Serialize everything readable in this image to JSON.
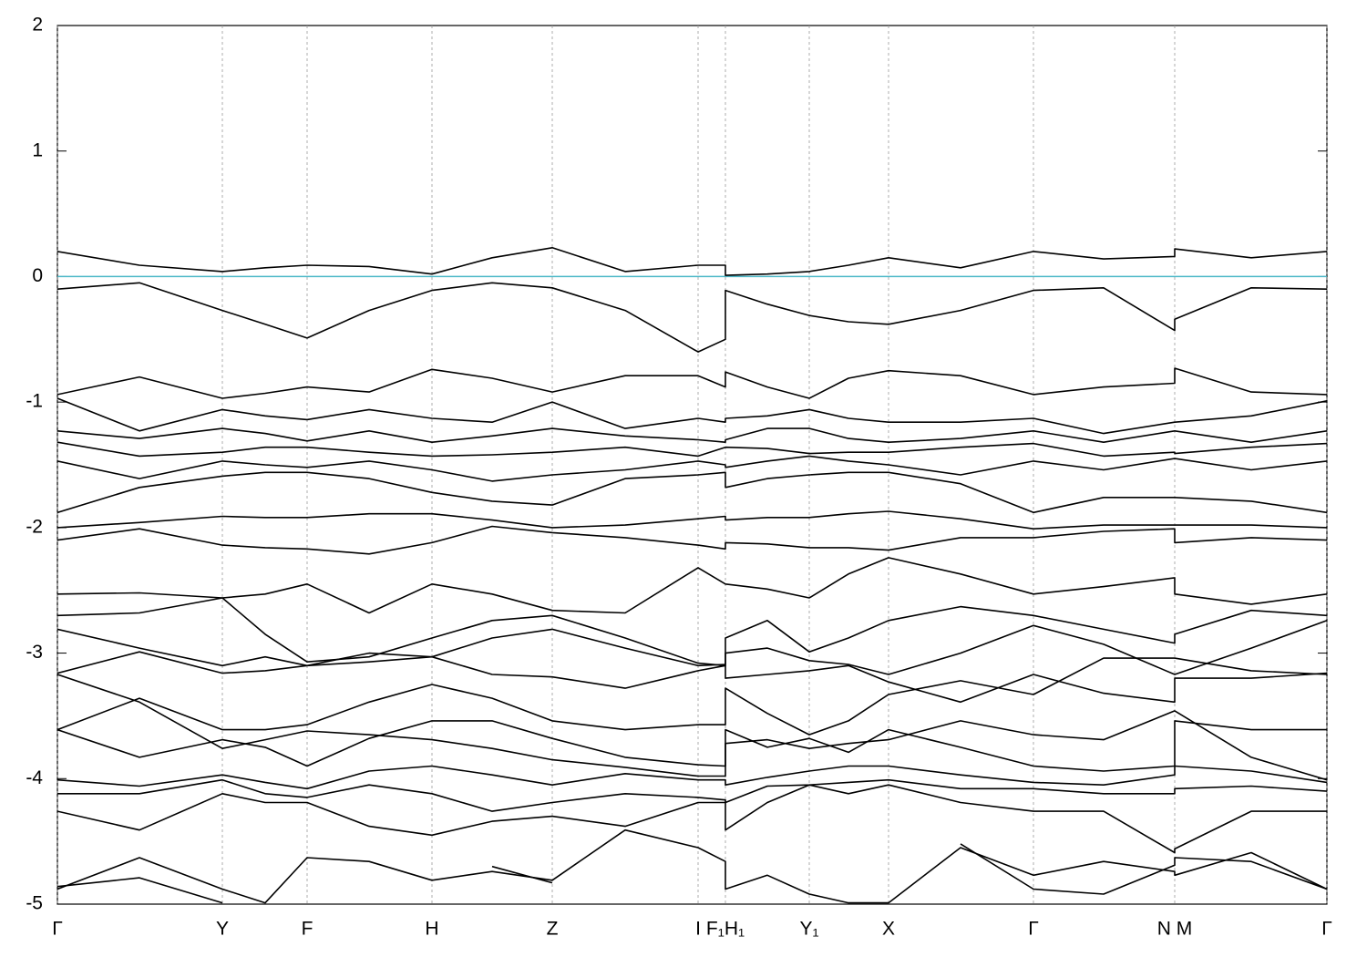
{
  "chart_data": {
    "type": "line",
    "x": [
      0,
      90,
      181,
      228,
      274,
      342,
      411,
      477,
      543,
      623,
      703,
      733,
      733,
      779,
      825,
      868,
      912,
      991,
      1071,
      1148,
      1226,
      1226,
      1310,
      1393
    ],
    "xlim": [
      0,
      1393
    ],
    "xticks": [
      {
        "value": 0,
        "label": "Γ"
      },
      {
        "value": 181,
        "label": "Y"
      },
      {
        "value": 274,
        "label": "F"
      },
      {
        "value": 411,
        "label": "H"
      },
      {
        "value": 543,
        "label": "Z"
      },
      {
        "value": 703,
        "label": "I"
      },
      {
        "value": 733,
        "label": "F₁H₁"
      },
      {
        "value": 825,
        "label": "Y₁"
      },
      {
        "value": 912,
        "label": "X"
      },
      {
        "value": 1071,
        "label": "Γ"
      },
      {
        "value": 1226,
        "label": "N M"
      },
      {
        "value": 1393,
        "label": "Γ"
      }
    ],
    "ylim": [
      -5,
      2
    ],
    "yticks": [
      2,
      1,
      0,
      -1,
      -2,
      -3,
      -4,
      -5
    ],
    "x_grid": true,
    "reference_line": {
      "value": 0,
      "color": "#4db8c8"
    },
    "series": [
      {
        "color": "#000000",
        "values": [
          0.2,
          0.09,
          0.04,
          0.07,
          0.09,
          0.08,
          0.02,
          0.15,
          0.23,
          0.04,
          0.09,
          0.09,
          0.01,
          0.02,
          0.04,
          0.09,
          0.15,
          0.07,
          0.2,
          0.14,
          0.16,
          0.22,
          0.15,
          0.2
        ]
      },
      {
        "color": "#000000",
        "values": [
          -0.1,
          -0.05,
          -0.27,
          -0.38,
          -0.49,
          -0.27,
          -0.11,
          -0.05,
          -0.09,
          -0.27,
          -0.6,
          -0.5,
          -0.11,
          -0.22,
          -0.31,
          -0.36,
          -0.38,
          -0.27,
          -0.11,
          -0.09,
          -0.43,
          -0.34,
          -0.09,
          -0.1
        ]
      },
      {
        "color": "#000000",
        "values": [
          -0.94,
          -0.8,
          -0.97,
          -0.93,
          -0.88,
          -0.92,
          -0.74,
          -0.81,
          -0.92,
          -0.79,
          -0.79,
          -0.88,
          -0.76,
          -0.88,
          -0.97,
          -0.81,
          -0.75,
          -0.79,
          -0.94,
          -0.88,
          -0.85,
          -0.73,
          -0.92,
          -0.94
        ]
      },
      {
        "color": "#000000",
        "values": [
          -0.97,
          -1.23,
          -1.06,
          -1.11,
          -1.14,
          -1.06,
          -1.13,
          -1.16,
          -1.0,
          -1.21,
          -1.13,
          -1.16,
          -1.13,
          -1.11,
          -1.06,
          -1.13,
          -1.16,
          -1.16,
          -1.13,
          -1.25,
          -1.16,
          -1.16,
          -1.11,
          -0.99
        ]
      },
      {
        "color": "#000000",
        "values": [
          -1.23,
          -1.29,
          -1.21,
          -1.25,
          -1.31,
          -1.23,
          -1.32,
          -1.27,
          -1.21,
          -1.27,
          -1.3,
          -1.32,
          -1.3,
          -1.21,
          -1.21,
          -1.29,
          -1.32,
          -1.29,
          -1.23,
          -1.32,
          -1.23,
          -1.23,
          -1.32,
          -1.23
        ]
      },
      {
        "color": "#000000",
        "values": [
          -1.32,
          -1.43,
          -1.4,
          -1.36,
          -1.36,
          -1.4,
          -1.43,
          -1.42,
          -1.4,
          -1.36,
          -1.43,
          -1.36,
          -1.36,
          -1.37,
          -1.41,
          -1.4,
          -1.4,
          -1.36,
          -1.33,
          -1.43,
          -1.4,
          -1.41,
          -1.36,
          -1.33
        ]
      },
      {
        "color": "#000000",
        "values": [
          -1.47,
          -1.61,
          -1.47,
          -1.5,
          -1.52,
          -1.47,
          -1.54,
          -1.63,
          -1.58,
          -1.54,
          -1.47,
          -1.5,
          -1.52,
          -1.47,
          -1.43,
          -1.47,
          -1.5,
          -1.58,
          -1.47,
          -1.54,
          -1.45,
          -1.45,
          -1.54,
          -1.47
        ]
      },
      {
        "color": "#000000",
        "values": [
          -1.88,
          -1.68,
          -1.59,
          -1.56,
          -1.56,
          -1.61,
          -1.72,
          -1.79,
          -1.82,
          -1.61,
          -1.58,
          -1.56,
          -1.68,
          -1.61,
          -1.58,
          -1.56,
          -1.56,
          -1.65,
          -1.88,
          -1.76,
          -1.76,
          -1.76,
          -1.79,
          -1.88
        ]
      },
      {
        "color": "#000000",
        "values": [
          -2.0,
          -1.96,
          -1.91,
          -1.92,
          -1.92,
          -1.89,
          -1.89,
          -1.94,
          -2.0,
          -1.98,
          -1.93,
          -1.91,
          -1.94,
          -1.92,
          -1.92,
          -1.89,
          -1.87,
          -1.93,
          -2.01,
          -1.98,
          -1.98,
          -1.98,
          -1.98,
          -2.0
        ]
      },
      {
        "color": "#000000",
        "values": [
          -2.1,
          -2.01,
          -2.14,
          -2.16,
          -2.17,
          -2.21,
          -2.12,
          -1.99,
          -2.04,
          -2.08,
          -2.14,
          -2.17,
          -2.12,
          -2.13,
          -2.16,
          -2.16,
          -2.18,
          -2.08,
          -2.08,
          -2.03,
          -2.01,
          -2.12,
          -2.08,
          -2.1
        ]
      },
      {
        "color": "#000000",
        "values": [
          -2.53,
          -2.52,
          -2.56,
          -2.53,
          -2.45,
          -2.68,
          -2.45,
          -2.53,
          -2.66,
          -2.68,
          -2.32,
          -2.45,
          -2.45,
          -2.49,
          -2.56,
          -2.37,
          -2.24,
          -2.37,
          -2.53,
          -2.47,
          -2.4,
          -2.53,
          -2.61,
          -2.53
        ]
      },
      {
        "color": "#000000",
        "values": [
          -2.7,
          -2.68,
          -2.56,
          -2.85,
          -3.07,
          -3.03,
          -2.88,
          -2.74,
          -2.7,
          -2.88,
          -3.08,
          -3.1,
          -2.88,
          -2.74,
          -2.99,
          -2.88,
          -2.74,
          -2.63,
          -2.7,
          -2.81,
          -2.92,
          -2.85,
          -2.66,
          -2.7
        ]
      },
      {
        "color": "#000000",
        "values": [
          -2.81,
          -2.96,
          -3.1,
          -3.03,
          -3.1,
          -3.0,
          -3.03,
          -2.88,
          -2.81,
          -2.96,
          -3.1,
          -3.09,
          -3.0,
          -2.96,
          -3.06,
          -3.09,
          -3.17,
          -3.0,
          -2.78,
          -2.93,
          -3.17,
          -3.17,
          -2.96,
          -2.74
        ]
      },
      {
        "color": "#000000",
        "values": [
          -3.16,
          -2.99,
          -3.16,
          -3.14,
          -3.1,
          -3.07,
          -3.03,
          -3.17,
          -3.19,
          -3.28,
          -3.14,
          -3.1,
          -3.2,
          -3.17,
          -3.14,
          -3.1,
          -3.23,
          -3.39,
          -3.17,
          -3.32,
          -3.39,
          -3.2,
          -3.2,
          -3.16
        ]
      },
      {
        "color": "#000000",
        "values": [
          -3.61,
          -3.36,
          -3.61,
          -3.61,
          -3.57,
          -3.39,
          -3.25,
          -3.36,
          -3.54,
          -3.61,
          -3.57,
          -3.57,
          -3.28,
          -3.48,
          -3.65,
          -3.54,
          -3.33,
          -3.22,
          -3.33,
          -3.04,
          -3.04,
          -3.04,
          -3.14,
          -3.17
        ]
      },
      {
        "color": "#000000",
        "values": [
          -3.17,
          -3.39,
          -3.76,
          -3.69,
          -3.62,
          -3.65,
          -3.69,
          -3.76,
          -3.85,
          -3.91,
          -3.98,
          -3.98,
          -3.72,
          -3.69,
          -3.76,
          -3.72,
          -3.69,
          -3.54,
          -3.65,
          -3.69,
          -3.46,
          -3.46,
          -3.83,
          -4.01
        ]
      },
      {
        "color": "#000000",
        "values": [
          -3.61,
          -3.83,
          -3.69,
          -3.75,
          -3.9,
          -3.68,
          -3.54,
          -3.54,
          -3.68,
          -3.83,
          -3.89,
          -3.9,
          -3.61,
          -3.75,
          -3.68,
          -3.79,
          -3.61,
          -3.75,
          -3.9,
          -3.94,
          -3.9,
          -3.54,
          -3.61,
          -3.61
        ]
      },
      {
        "color": "#000000",
        "values": [
          -4.01,
          -4.06,
          -3.97,
          -4.03,
          -4.08,
          -3.94,
          -3.9,
          -3.97,
          -4.05,
          -3.96,
          -4.01,
          -4.01,
          -4.05,
          -3.99,
          -3.94,
          -3.9,
          -3.9,
          -3.97,
          -4.03,
          -4.05,
          -3.97,
          -3.9,
          -3.94,
          -4.03
        ]
      },
      {
        "color": "#000000",
        "values": [
          -4.12,
          -4.12,
          -4.01,
          -4.12,
          -4.15,
          -4.05,
          -4.12,
          -4.26,
          -4.19,
          -4.12,
          -4.15,
          -4.17,
          -4.19,
          -4.06,
          -4.05,
          -4.03,
          -4.01,
          -4.08,
          -4.08,
          -4.12,
          -4.12,
          -4.08,
          -4.06,
          -4.1
        ]
      },
      {
        "color": "#000000",
        "values": [
          -4.26,
          -4.41,
          -4.12,
          -4.19,
          -4.19,
          -4.38,
          -4.45,
          -4.34,
          -4.3,
          -4.38,
          -4.19,
          -4.19,
          -4.41,
          -4.19,
          -4.05,
          -4.12,
          -4.05,
          -4.19,
          -4.26,
          -4.26,
          -4.59,
          -4.56,
          -4.26,
          -4.26
        ]
      },
      {
        "color": "#000000",
        "values": [
          -4.88,
          -4.63,
          -4.88,
          -4.99,
          -4.63,
          -4.66,
          -4.81,
          -4.74,
          -4.81,
          -4.41,
          -4.55,
          -4.66,
          -4.88,
          -4.77,
          -4.92,
          -4.99,
          -4.99,
          -4.55,
          -4.77,
          -4.66,
          -4.74,
          -4.77,
          -4.59,
          -4.88
        ]
      },
      {
        "color": "#000000",
        "values": [
          -4.86,
          -4.79,
          -4.99,
          null,
          null,
          null,
          null,
          -4.7,
          -4.83,
          null,
          null,
          null,
          null,
          null,
          null,
          null,
          null,
          -4.52,
          -4.88,
          -4.92,
          -4.69,
          -4.63,
          -4.66,
          -4.88
        ]
      }
    ]
  }
}
